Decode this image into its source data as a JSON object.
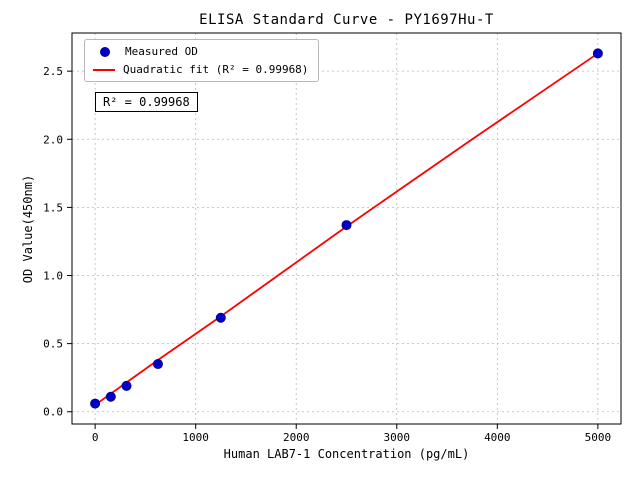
{
  "chart_data": {
    "type": "scatter",
    "title": "ELISA Standard Curve - PY1697Hu-T",
    "xlabel": "Human LAB7-1 Concentration (pg/mL)",
    "ylabel": "OD Value(450nm)",
    "xlim": [
      -230,
      5230
    ],
    "ylim": [
      -0.09,
      2.78
    ],
    "x_ticks": [
      0,
      1000,
      2000,
      3000,
      4000,
      5000
    ],
    "y_ticks": [
      0.0,
      0.5,
      1.0,
      1.5,
      2.0,
      2.5
    ],
    "grid": "dashed",
    "legend_position": "upper-left",
    "series": [
      {
        "name": "Measured OD",
        "type": "scatter",
        "color": "#0000cd",
        "points": [
          [
            0,
            0.06
          ],
          [
            156,
            0.11
          ],
          [
            312,
            0.19
          ],
          [
            625,
            0.35
          ],
          [
            1250,
            0.69
          ],
          [
            2500,
            1.37
          ],
          [
            5000,
            2.63
          ]
        ]
      },
      {
        "name": "Quadratic fit (R² = 0.99968)",
        "type": "line",
        "color": "#ff0000",
        "points": [
          [
            0,
            0.05
          ],
          [
            625,
            0.38
          ],
          [
            1250,
            0.7
          ],
          [
            2500,
            1.36
          ],
          [
            3750,
            2.0
          ],
          [
            5000,
            2.63
          ]
        ]
      }
    ],
    "annotation": "R² = 0.99968",
    "r_squared": 0.99968,
    "colors": {
      "scatter": "#0000cd",
      "scatter_edge": "#00008b",
      "fit_line": "#ff0000",
      "grid": "#b8b8b8",
      "axis": "#000000"
    }
  },
  "legend": {
    "measured_label": "Measured OD",
    "fit_label": "Quadratic fit (R² = 0.99968)"
  }
}
